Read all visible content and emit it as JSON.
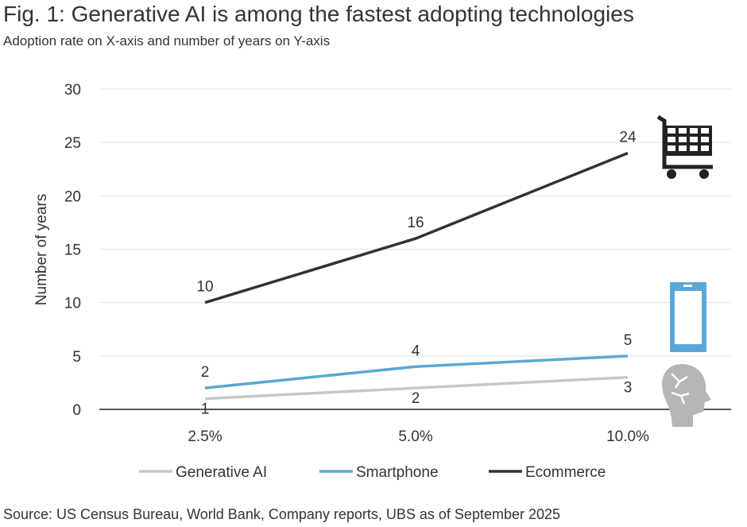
{
  "chart_data": {
    "type": "line",
    "title": "Fig. 1: Generative AI is among the fastest adopting technologies",
    "subtitle": "Adoption rate on X-axis and number of years on Y-axis",
    "xlabel": "",
    "ylabel": "Number of years",
    "categories": [
      "2.5%",
      "5.0%",
      "10.0%"
    ],
    "ylim": [
      0,
      30
    ],
    "yticks": [
      "0",
      "5",
      "10",
      "15",
      "20",
      "25",
      "30"
    ],
    "grid": true,
    "legend_position": "bottom",
    "series": [
      {
        "name": "Generative AI",
        "values": [
          1,
          2,
          3
        ],
        "color": "#c8c8c8",
        "icon": "brain-head-icon"
      },
      {
        "name": "Smartphone",
        "values": [
          2,
          4,
          5
        ],
        "color": "#5ba8d6",
        "icon": "smartphone-icon"
      },
      {
        "name": "Ecommerce",
        "values": [
          10,
          16,
          24
        ],
        "color": "#333333",
        "icon": "shopping-cart-icon"
      }
    ]
  },
  "source": "Source: US Census Bureau, World Bank, Company reports, UBS as of September 2025"
}
